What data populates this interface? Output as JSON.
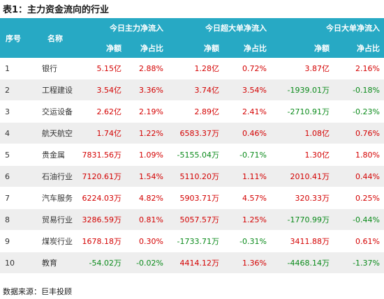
{
  "title": "表1：主力资金流向的行业",
  "columns": {
    "seq": "序号",
    "name": "名称",
    "groups": [
      "今日主力净流入",
      "今日超大单净流入",
      "今日大单净流入"
    ],
    "sub": [
      "净额",
      "净占比",
      "净额",
      "净占比",
      "净额",
      "净占比"
    ]
  },
  "rows": [
    {
      "seq": "1",
      "name": "银行",
      "cells": [
        "5.15亿",
        "2.88%",
        "1.28亿",
        "0.72%",
        "3.87亿",
        "2.16%"
      ]
    },
    {
      "seq": "2",
      "name": "工程建设",
      "cells": [
        "3.54亿",
        "3.36%",
        "3.74亿",
        "3.54%",
        "-1939.01万",
        "-0.18%"
      ]
    },
    {
      "seq": "3",
      "name": "交运设备",
      "cells": [
        "2.62亿",
        "2.19%",
        "2.89亿",
        "2.41%",
        "-2710.91万",
        "-0.23%"
      ]
    },
    {
      "seq": "4",
      "name": "航天航空",
      "cells": [
        "1.74亿",
        "1.22%",
        "6583.37万",
        "0.46%",
        "1.08亿",
        "0.76%"
      ]
    },
    {
      "seq": "5",
      "name": "贵金属",
      "cells": [
        "7831.56万",
        "1.09%",
        "-5155.04万",
        "-0.71%",
        "1.30亿",
        "1.80%"
      ]
    },
    {
      "seq": "6",
      "name": "石油行业",
      "cells": [
        "7120.61万",
        "1.54%",
        "5110.20万",
        "1.11%",
        "2010.41万",
        "0.44%"
      ]
    },
    {
      "seq": "7",
      "name": "汽车服务",
      "cells": [
        "6224.03万",
        "4.82%",
        "5903.71万",
        "4.57%",
        "320.33万",
        "0.25%"
      ]
    },
    {
      "seq": "8",
      "name": "贸易行业",
      "cells": [
        "3286.59万",
        "0.81%",
        "5057.57万",
        "1.25%",
        "-1770.99万",
        "-0.44%"
      ]
    },
    {
      "seq": "9",
      "name": "煤炭行业",
      "cells": [
        "1678.18万",
        "0.30%",
        "-1733.71万",
        "-0.31%",
        "3411.88万",
        "0.61%"
      ]
    },
    {
      "seq": "10",
      "name": "教育",
      "cells": [
        "-54.02万",
        "-0.02%",
        "4414.12万",
        "1.36%",
        "-4468.14万",
        "-1.37%"
      ]
    }
  ],
  "source": "数据来源：巨丰投顾",
  "colors": {
    "header_bg": "#27a9c4",
    "header_text": "#ffffff",
    "positive": "#d40000",
    "negative": "#0a8a1a",
    "stripe": "#eeeeee"
  }
}
